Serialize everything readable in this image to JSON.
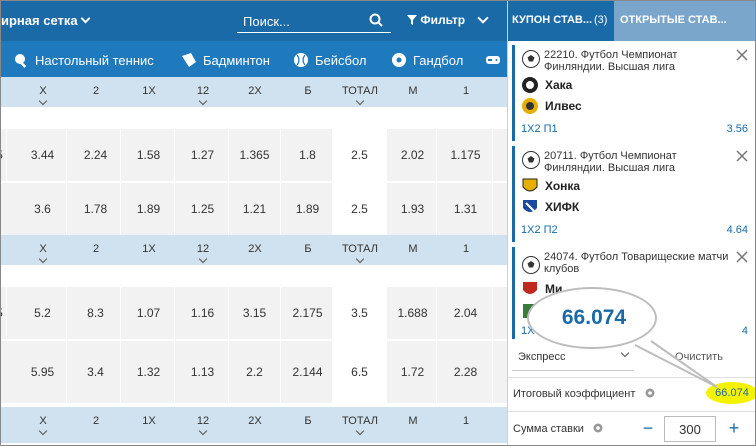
{
  "topbar": {
    "lineup_label": "ирная сетка",
    "search_placeholder": "Поиск...",
    "filter_label": "Фильтр"
  },
  "sports": [
    {
      "label": "Настольный теннис",
      "icon": "table-tennis-icon"
    },
    {
      "label": "Бадминтон",
      "icon": "shuttlecock-icon"
    },
    {
      "label": "Бейсбол",
      "icon": "baseball-icon"
    },
    {
      "label": "Гандбол",
      "icon": "handball-icon"
    },
    {
      "label": "",
      "icon": "gamepad-icon"
    }
  ],
  "table": {
    "headers": [
      "X",
      "2",
      "1X",
      "12",
      "2X",
      "Б",
      "ТОТАЛ",
      "М",
      "1"
    ],
    "groups": [
      {
        "rows": [
          [
            "3.44",
            "2.24",
            "1.58",
            "1.27",
            "1.365",
            "1.8",
            "2.5",
            "2.02",
            "1.175"
          ],
          [
            "3.6",
            "1.78",
            "1.89",
            "1.25",
            "1.21",
            "1.89",
            "2.5",
            "1.93",
            "1.31"
          ]
        ]
      },
      {
        "rows": [
          [
            "5.2",
            "8.3",
            "1.07",
            "1.16",
            "3.15",
            "2.175",
            "3.5",
            "1.688",
            "2.04"
          ],
          [
            "5.95",
            "3.4",
            "1.32",
            "1.13",
            "2.2",
            "2.144",
            "6.5",
            "1.72",
            "2.28"
          ]
        ]
      }
    ],
    "left_fragments": [
      "5",
      "5"
    ]
  },
  "coupon": {
    "tab_coupon": "КУПОН СТАВ...",
    "tab_coupon_count": "(3)",
    "tab_open": "ОТКРЫТЫЕ СТАВ...",
    "bets": [
      {
        "title": "22210. Футбол Чемпионат Финляндии. Высшая лига",
        "team1": "Хака",
        "team2": "Илвес",
        "market": "1Х2 П1",
        "odd": "3.56"
      },
      {
        "title": "20711. Футбол Чемпионат Финляндии. Высшая лига",
        "team1": "Хонка",
        "team2": "ХИФК",
        "market": "1Х2 П2",
        "odd": "4.64"
      },
      {
        "title": "24074. Футбол Товарищеские матчи клубов",
        "team1": "Ми",
        "team2": "",
        "market": "1Х",
        "odd": "4"
      }
    ],
    "bet_type": "Экспресс",
    "clear_label": "Очистить",
    "total_label": "Итоговый коэффициент",
    "total_value": "66.074",
    "stake_label": "Сумма ставки",
    "stake_value": "300",
    "minus": "−",
    "plus": "+"
  },
  "callout": {
    "value": "66.074"
  },
  "colors": {
    "primary": "#1a6aa8",
    "highlight": "#f4f200"
  }
}
